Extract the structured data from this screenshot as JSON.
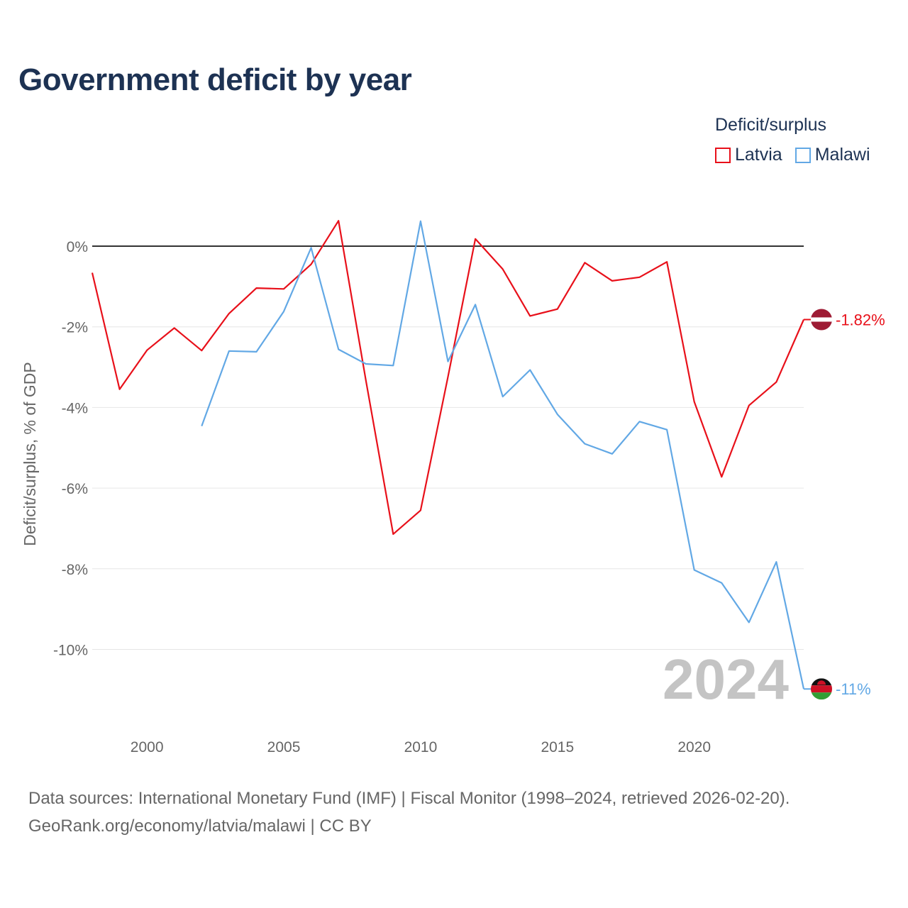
{
  "title": "Government deficit by year",
  "legend": {
    "title": "Deficit/surplus",
    "items": [
      {
        "label": "Latvia",
        "color": "#e8101a"
      },
      {
        "label": "Malawi",
        "color": "#62a8e5"
      }
    ]
  },
  "footer": {
    "line1": "Data sources: International Monetary Fund (IMF) | Fiscal Monitor (1998–2024, retrieved 2026-02-20).",
    "line2": "GeoRank.org/economy/latvia/malawi | CC BY"
  },
  "chart_data": {
    "type": "line",
    "title": "Government deficit by year",
    "xlabel": "",
    "ylabel": "Deficit/surplus, % of GDP",
    "xlim": [
      1998,
      2024
    ],
    "ylim": [
      -11.5,
      1
    ],
    "x_ticks": [
      2000,
      2005,
      2010,
      2015,
      2020
    ],
    "y_ticks": [
      {
        "value": 0,
        "label": "0%"
      },
      {
        "value": -2,
        "label": "-2%"
      },
      {
        "value": -4,
        "label": "-4%"
      },
      {
        "value": -6,
        "label": "-6%"
      },
      {
        "value": -8,
        "label": "-8%"
      },
      {
        "value": -10,
        "label": "-10%"
      }
    ],
    "year_watermark": "2024",
    "series": [
      {
        "name": "Latvia",
        "color": "#e8101a",
        "end_label": "-1.82%",
        "points": [
          [
            1998,
            -0.66
          ],
          [
            1999,
            -3.55
          ],
          [
            2000,
            -2.58
          ],
          [
            2001,
            -2.03
          ],
          [
            2002,
            -2.59
          ],
          [
            2003,
            -1.67
          ],
          [
            2004,
            -1.04
          ],
          [
            2005,
            -1.06
          ],
          [
            2006,
            -0.45
          ],
          [
            2007,
            0.63
          ],
          [
            2008,
            -3.33
          ],
          [
            2009,
            -7.14
          ],
          [
            2010,
            -6.55
          ],
          [
            2011,
            -3.24
          ],
          [
            2012,
            0.18
          ],
          [
            2013,
            -0.57
          ],
          [
            2014,
            -1.73
          ],
          [
            2015,
            -1.56
          ],
          [
            2016,
            -0.41
          ],
          [
            2017,
            -0.86
          ],
          [
            2018,
            -0.77
          ],
          [
            2019,
            -0.39
          ],
          [
            2020,
            -3.86
          ],
          [
            2021,
            -5.72
          ],
          [
            2022,
            -3.95
          ],
          [
            2023,
            -3.37
          ],
          [
            2024,
            -1.82
          ]
        ]
      },
      {
        "name": "Malawi",
        "color": "#62a8e5",
        "end_label": "-11%",
        "points": [
          [
            2002,
            -4.46
          ],
          [
            2003,
            -2.6
          ],
          [
            2004,
            -2.62
          ],
          [
            2005,
            -1.62
          ],
          [
            2006,
            -0.04
          ],
          [
            2007,
            -2.56
          ],
          [
            2008,
            -2.92
          ],
          [
            2009,
            -2.96
          ],
          [
            2010,
            0.62
          ],
          [
            2011,
            -2.86
          ],
          [
            2012,
            -1.45
          ],
          [
            2013,
            -3.73
          ],
          [
            2014,
            -3.07
          ],
          [
            2015,
            -4.17
          ],
          [
            2016,
            -4.9
          ],
          [
            2017,
            -5.15
          ],
          [
            2018,
            -4.35
          ],
          [
            2019,
            -4.55
          ],
          [
            2020,
            -8.03
          ],
          [
            2021,
            -8.35
          ],
          [
            2022,
            -9.33
          ],
          [
            2023,
            -7.83
          ],
          [
            2024,
            -10.98
          ]
        ]
      }
    ]
  }
}
